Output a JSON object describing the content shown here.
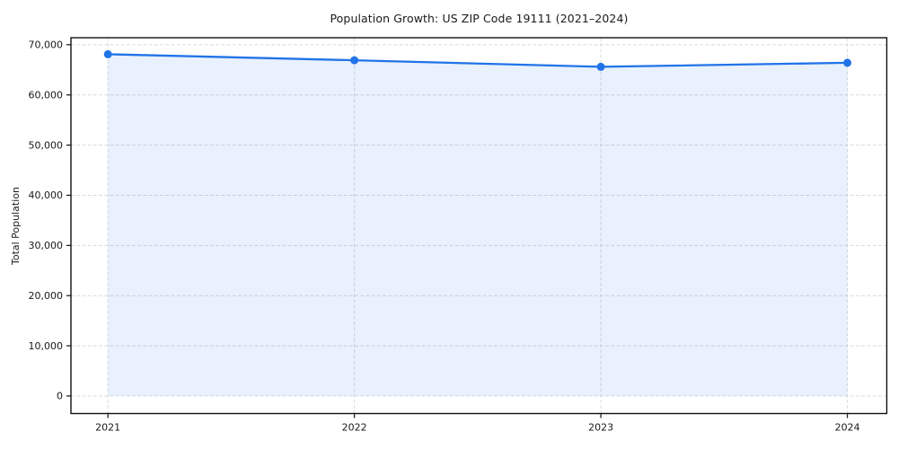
{
  "title": "Population Growth: US ZIP Code 19111 (2021–2024)",
  "chart_data": {
    "type": "area",
    "title": "Population Growth: US ZIP Code 19111 (2021–2024)",
    "xlabel": "",
    "ylabel": "Total Population",
    "x": [
      2021,
      2022,
      2023,
      2024
    ],
    "categories": [
      "2021",
      "2022",
      "2023",
      "2024"
    ],
    "series": [
      {
        "name": "Total Population",
        "values": [
          68100,
          66900,
          65600,
          66400
        ]
      }
    ],
    "yticks": [
      0,
      10000,
      20000,
      30000,
      40000,
      50000,
      60000,
      70000
    ],
    "ytick_labels": [
      "0",
      "10,000",
      "20,000",
      "30,000",
      "40,000",
      "50,000",
      "60,000",
      "70,000"
    ],
    "ylim": [
      -3500,
      71400
    ],
    "xlim": [
      2020.85,
      2024.16
    ],
    "fill_to": 0,
    "grid": true,
    "grid_style": "dashed",
    "legend": "none",
    "colors": {
      "line": "#2173e8",
      "marker": "#2173e8",
      "fill": "#2173e8",
      "fill_opacity": 0.1,
      "grid": "#d9d9d9",
      "spine": "#111111",
      "text": "#1a1a1a",
      "background": "#ffffff"
    },
    "marker": "circle",
    "marker_size": 4.5,
    "line_width": 2.3
  }
}
